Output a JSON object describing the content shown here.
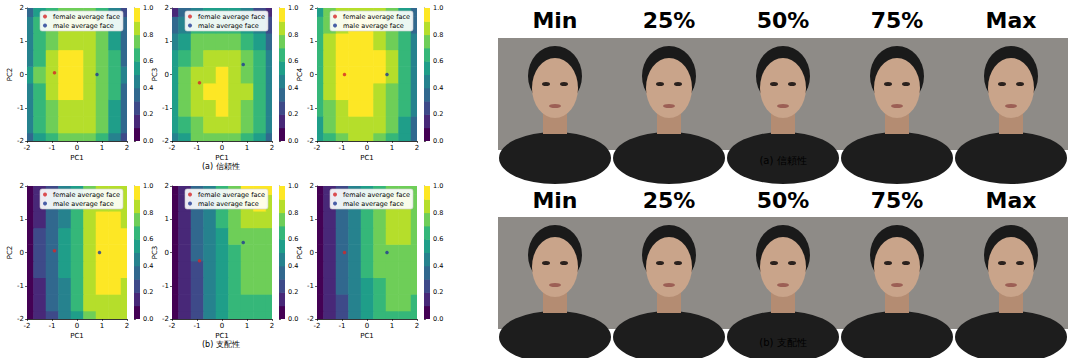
{
  "chart_data": [
    {
      "type": "contour",
      "xlabel": "PC1",
      "ylabel": "PC2",
      "xlim": [
        -2,
        2
      ],
      "ylim": [
        -2,
        2
      ],
      "xticks": [
        -2,
        -1,
        0,
        1,
        2
      ],
      "yticks": [
        -2,
        -1,
        0,
        1,
        2
      ],
      "legend": "upper right",
      "x": [
        -2,
        -1.5,
        -1,
        -0.5,
        0,
        0.5,
        1,
        1.5,
        2
      ],
      "y": [
        -2,
        -1.5,
        -1,
        -0.5,
        0,
        0.5,
        1,
        1.5,
        2
      ],
      "cells": [
        [
          0.34,
          0.54,
          0.67,
          0.75,
          0.77,
          0.73,
          0.63,
          0.46,
          0.24
        ],
        [
          0.41,
          0.61,
          0.74,
          0.82,
          0.84,
          0.8,
          0.7,
          0.53,
          0.31
        ],
        [
          0.46,
          0.66,
          0.79,
          0.87,
          0.89,
          0.85,
          0.75,
          0.58,
          0.36
        ],
        [
          0.49,
          0.69,
          0.82,
          0.9,
          0.92,
          0.88,
          0.78,
          0.61,
          0.39
        ],
        [
          0.5,
          0.7,
          0.83,
          0.91,
          0.93,
          0.89,
          0.79,
          0.62,
          0.4
        ],
        [
          0.49,
          0.69,
          0.82,
          0.9,
          0.92,
          0.88,
          0.78,
          0.61,
          0.39
        ],
        [
          0.46,
          0.66,
          0.79,
          0.87,
          0.89,
          0.85,
          0.75,
          0.58,
          0.36
        ],
        [
          0.41,
          0.61,
          0.74,
          0.82,
          0.84,
          0.8,
          0.7,
          0.53,
          0.31
        ],
        [
          0.34,
          0.54,
          0.67,
          0.75,
          0.77,
          0.73,
          0.63,
          0.46,
          0.24
        ]
      ],
      "colorbar": {
        "range": [
          0,
          1
        ],
        "ticks": [
          {
            "value": 0,
            "label": "0.0"
          },
          0.2,
          0.4,
          0.6,
          0.8,
          {
            "value": 1,
            "label": "1.0"
          }
        ]
      },
      "series": [
        {
          "name": "female average face",
          "type": "scatter",
          "color": "#d62728",
          "x": [
            -0.9
          ],
          "values": [
            0.05
          ]
        },
        {
          "name": "male average face",
          "type": "scatter",
          "color": "#1f3a93",
          "x": [
            0.8
          ],
          "values": [
            0.0
          ]
        }
      ]
    },
    {
      "type": "contour",
      "xlabel": "PC1",
      "ylabel": "PC3",
      "xlim": [
        -2,
        2
      ],
      "ylim": [
        -2,
        2
      ],
      "xticks": [
        -2,
        -1,
        0,
        1,
        2
      ],
      "yticks": [
        -2,
        -1,
        0,
        1,
        2
      ],
      "legend": "upper right",
      "x": [
        -2,
        -1.5,
        -1,
        -0.5,
        0,
        0.5,
        1,
        1.5,
        2
      ],
      "y": [
        -2,
        -1.5,
        -1,
        -0.5,
        0,
        0.5,
        1,
        1.5,
        2
      ],
      "cells": [
        [
          0.43,
          0.59,
          0.71,
          0.77,
          0.79,
          0.75,
          0.67,
          0.53,
          0.35
        ],
        [
          0.5,
          0.66,
          0.78,
          0.84,
          0.86,
          0.82,
          0.74,
          0.6,
          0.42
        ],
        [
          0.55,
          0.71,
          0.83,
          0.89,
          0.91,
          0.87,
          0.79,
          0.65,
          0.47
        ],
        [
          0.56,
          0.72,
          0.84,
          0.9,
          0.92,
          0.88,
          0.8,
          0.66,
          0.48
        ],
        [
          0.55,
          0.71,
          0.83,
          0.89,
          0.91,
          0.87,
          0.79,
          0.65,
          0.47
        ],
        [
          0.5,
          0.66,
          0.78,
          0.84,
          0.86,
          0.82,
          0.74,
          0.6,
          0.42
        ],
        [
          0.43,
          0.59,
          0.71,
          0.77,
          0.79,
          0.75,
          0.67,
          0.53,
          0.35
        ],
        [
          0.32,
          0.48,
          0.6,
          0.66,
          0.68,
          0.64,
          0.56,
          0.42,
          0.24
        ],
        [
          0.19,
          0.35,
          0.47,
          0.53,
          0.55,
          0.51,
          0.43,
          0.29,
          0.11
        ]
      ],
      "colorbar": {
        "range": [
          0,
          1
        ],
        "ticks": [
          {
            "value": 0,
            "label": "0.0"
          },
          0.2,
          0.4,
          0.6,
          0.8,
          {
            "value": 1,
            "label": "1.0"
          }
        ]
      },
      "series": [
        {
          "name": "female average face",
          "type": "scatter",
          "color": "#d62728",
          "x": [
            -0.9
          ],
          "values": [
            -0.25
          ]
        },
        {
          "name": "male average face",
          "type": "scatter",
          "color": "#1f3a93",
          "x": [
            0.85
          ],
          "values": [
            0.3
          ]
        }
      ]
    },
    {
      "type": "contour",
      "xlabel": "PC1",
      "ylabel": "PC4",
      "xlim": [
        -2,
        2
      ],
      "ylim": [
        -2,
        2
      ],
      "xticks": [
        -2,
        -1,
        0,
        1,
        2
      ],
      "yticks": [
        -2,
        -1,
        0,
        1,
        2
      ],
      "legend": "upper right",
      "x": [
        -2,
        -1.5,
        -1,
        -0.5,
        0,
        0.5,
        1,
        1.5,
        2
      ],
      "y": [
        -2,
        -1.5,
        -1,
        -0.5,
        0,
        0.5,
        1,
        1.5,
        2
      ],
      "cells": [
        [
          0.54,
          0.68,
          0.78,
          0.82,
          0.82,
          0.76,
          0.66,
          0.5,
          0.3
        ],
        [
          0.59,
          0.74,
          0.83,
          0.88,
          0.87,
          0.82,
          0.71,
          0.56,
          0.35
        ],
        [
          0.64,
          0.78,
          0.88,
          0.92,
          0.92,
          0.86,
          0.76,
          0.61,
          0.4
        ],
        [
          0.67,
          0.81,
          0.91,
          0.95,
          0.95,
          0.89,
          0.79,
          0.63,
          0.43
        ],
        [
          0.68,
          0.83,
          0.92,
          0.97,
          0.96,
          0.91,
          0.8,
          0.65,
          0.44
        ],
        [
          0.68,
          0.82,
          0.92,
          0.96,
          0.96,
          0.9,
          0.8,
          0.64,
          0.44
        ],
        [
          0.66,
          0.81,
          0.9,
          0.95,
          0.94,
          0.89,
          0.78,
          0.63,
          0.42
        ],
        [
          0.63,
          0.78,
          0.87,
          0.91,
          0.91,
          0.86,
          0.75,
          0.6,
          0.39
        ],
        [
          0.58,
          0.73,
          0.82,
          0.87,
          0.86,
          0.81,
          0.7,
          0.55,
          0.34
        ]
      ],
      "colorbar": {
        "range": [
          0,
          1
        ],
        "ticks": [
          {
            "value": 0,
            "label": "0.0"
          },
          0.2,
          0.4,
          0.6,
          0.8,
          {
            "value": 1,
            "label": "1.0"
          }
        ]
      },
      "series": [
        {
          "name": "female average face",
          "type": "scatter",
          "color": "#d62728",
          "x": [
            -0.9
          ],
          "values": [
            0.0
          ]
        },
        {
          "name": "male average face",
          "type": "scatter",
          "color": "#1f3a93",
          "x": [
            0.8
          ],
          "values": [
            0.0
          ]
        }
      ]
    },
    {
      "type": "contour",
      "xlabel": "PC1",
      "ylabel": "PC2",
      "xlim": [
        -2,
        2
      ],
      "ylim": [
        -2,
        2
      ],
      "xticks": [
        -2,
        -1,
        0,
        1,
        2
      ],
      "yticks": [
        -2,
        -1,
        0,
        1,
        2
      ],
      "legend": "upper right",
      "x": [
        -2,
        -1.5,
        -1,
        -0.5,
        0,
        0.5,
        1,
        1.5,
        2
      ],
      "y": [
        -2,
        -1.5,
        -1,
        -0.5,
        0,
        0.5,
        1,
        1.5,
        2
      ],
      "cells": [
        [
          0.02,
          0.13,
          0.26,
          0.42,
          0.58,
          0.76,
          0.84,
          0.85,
          0.82
        ],
        [
          0.03,
          0.16,
          0.3,
          0.46,
          0.62,
          0.8,
          0.88,
          0.89,
          0.86
        ],
        [
          0.04,
          0.18,
          0.33,
          0.49,
          0.65,
          0.83,
          0.91,
          0.92,
          0.89
        ],
        [
          0.05,
          0.2,
          0.35,
          0.51,
          0.67,
          0.85,
          0.93,
          0.94,
          0.91
        ],
        [
          0.05,
          0.2,
          0.36,
          0.52,
          0.68,
          0.86,
          0.94,
          0.95,
          0.92
        ],
        [
          0.05,
          0.2,
          0.35,
          0.51,
          0.67,
          0.85,
          0.93,
          0.94,
          0.91
        ],
        [
          0.04,
          0.18,
          0.33,
          0.49,
          0.65,
          0.83,
          0.91,
          0.92,
          0.89
        ],
        [
          0.03,
          0.16,
          0.3,
          0.46,
          0.62,
          0.8,
          0.88,
          0.89,
          0.86
        ],
        [
          0.02,
          0.13,
          0.26,
          0.42,
          0.58,
          0.76,
          0.84,
          0.85,
          0.82
        ]
      ],
      "colorbar": {
        "range": [
          0,
          1
        ],
        "ticks": [
          {
            "value": 0,
            "label": "0.0"
          },
          0.2,
          0.4,
          0.6,
          0.8,
          {
            "value": 1,
            "label": "1.0"
          }
        ]
      },
      "series": [
        {
          "name": "female average face",
          "type": "scatter",
          "color": "#d62728",
          "x": [
            -0.9
          ],
          "values": [
            0.05
          ]
        },
        {
          "name": "male average face",
          "type": "scatter",
          "color": "#1f3a93",
          "x": [
            0.9
          ],
          "values": [
            0.0
          ]
        }
      ]
    },
    {
      "type": "contour",
      "xlabel": "PC1",
      "ylabel": "PC3",
      "xlim": [
        -2,
        2
      ],
      "ylim": [
        -2,
        2
      ],
      "xticks": [
        -2,
        -1,
        0,
        1,
        2
      ],
      "yticks": [
        -2,
        -1,
        0,
        1,
        2
      ],
      "legend": "upper right",
      "x": [
        -2,
        -1.5,
        -1,
        -0.5,
        0,
        0.5,
        1,
        1.5,
        2
      ],
      "y": [
        -2,
        -1.5,
        -1,
        -0.5,
        0,
        0.5,
        1,
        1.5,
        2
      ],
      "cells": [
        [
          0.03,
          0.13,
          0.26,
          0.4,
          0.52,
          0.62,
          0.66,
          0.66,
          0.64
        ],
        [
          0.03,
          0.14,
          0.27,
          0.41,
          0.54,
          0.63,
          0.68,
          0.68,
          0.67
        ],
        [
          0.03,
          0.14,
          0.28,
          0.43,
          0.55,
          0.65,
          0.7,
          0.71,
          0.7
        ],
        [
          0.03,
          0.15,
          0.29,
          0.44,
          0.57,
          0.67,
          0.72,
          0.73,
          0.72
        ],
        [
          0.03,
          0.15,
          0.3,
          0.45,
          0.58,
          0.68,
          0.74,
          0.76,
          0.75
        ],
        [
          0.03,
          0.15,
          0.3,
          0.45,
          0.59,
          0.7,
          0.77,
          0.79,
          0.78
        ],
        [
          0.03,
          0.15,
          0.3,
          0.46,
          0.6,
          0.72,
          0.81,
          0.84,
          0.82
        ],
        [
          0.03,
          0.15,
          0.3,
          0.46,
          0.61,
          0.74,
          0.86,
          0.91,
          0.88
        ],
        [
          0.03,
          0.15,
          0.3,
          0.46,
          0.62,
          0.76,
          0.9,
          0.95,
          0.92
        ]
      ],
      "colorbar": {
        "range": [
          0,
          1
        ],
        "ticks": [
          {
            "value": 0,
            "label": "0.0"
          },
          0.2,
          0.4,
          0.6,
          0.8,
          {
            "value": 1,
            "label": "1.0"
          }
        ]
      },
      "series": [
        {
          "name": "female average face",
          "type": "scatter",
          "color": "#d62728",
          "x": [
            -0.9
          ],
          "values": [
            -0.25
          ]
        },
        {
          "name": "male average face",
          "type": "scatter",
          "color": "#1f3a93",
          "x": [
            0.85
          ],
          "values": [
            0.3
          ]
        }
      ]
    },
    {
      "type": "contour",
      "xlabel": "PC1",
      "ylabel": "PC4",
      "xlim": [
        -2,
        2
      ],
      "ylim": [
        -2,
        2
      ],
      "xticks": [
        -2,
        -1,
        0,
        1,
        2
      ],
      "yticks": [
        -2,
        -1,
        0,
        1,
        2
      ],
      "legend": "upper right",
      "x": [
        -2,
        -1.5,
        -1,
        -0.5,
        0,
        0.5,
        1,
        1.5,
        2
      ],
      "y": [
        -2,
        -1.5,
        -1,
        -0.5,
        0,
        0.5,
        1,
        1.5,
        2
      ],
      "cells": [
        [
          0.03,
          0.14,
          0.28,
          0.42,
          0.55,
          0.63,
          0.67,
          0.68,
          0.66
        ],
        [
          0.03,
          0.15,
          0.29,
          0.44,
          0.57,
          0.66,
          0.7,
          0.71,
          0.69
        ],
        [
          0.03,
          0.15,
          0.3,
          0.45,
          0.59,
          0.69,
          0.74,
          0.74,
          0.72
        ],
        [
          0.03,
          0.15,
          0.3,
          0.46,
          0.6,
          0.71,
          0.77,
          0.77,
          0.75
        ],
        [
          0.03,
          0.15,
          0.3,
          0.46,
          0.61,
          0.72,
          0.78,
          0.79,
          0.76
        ],
        [
          0.03,
          0.15,
          0.3,
          0.46,
          0.61,
          0.73,
          0.8,
          0.81,
          0.77
        ],
        [
          0.03,
          0.15,
          0.3,
          0.46,
          0.61,
          0.73,
          0.82,
          0.86,
          0.78
        ],
        [
          0.03,
          0.15,
          0.3,
          0.46,
          0.6,
          0.72,
          0.8,
          0.8,
          0.76
        ],
        [
          0.03,
          0.14,
          0.29,
          0.44,
          0.58,
          0.69,
          0.75,
          0.74,
          0.71
        ]
      ],
      "colorbar": {
        "range": [
          0,
          1
        ],
        "ticks": [
          {
            "value": 0,
            "label": "0.0"
          },
          0.2,
          0.4,
          0.6,
          0.8,
          {
            "value": 1,
            "label": "1.0"
          }
        ]
      },
      "series": [
        {
          "name": "female average face",
          "type": "scatter",
          "color": "#d62728",
          "x": [
            -0.9
          ],
          "values": [
            0.0
          ]
        },
        {
          "name": "male average face",
          "type": "scatter",
          "color": "#1f3a93",
          "x": [
            0.8
          ],
          "values": [
            0.0
          ]
        }
      ]
    }
  ],
  "contour_captions": [
    "(a) 信頼性",
    "(b) 支配性"
  ],
  "face_panels": [
    {
      "caption": "(a) 信頼性",
      "labels": [
        "Min",
        "25%",
        "50%",
        "75%",
        "Max"
      ]
    },
    {
      "caption": "(b) 支配性",
      "labels": [
        "Min",
        "25%",
        "50%",
        "75%",
        "Max"
      ]
    }
  ]
}
